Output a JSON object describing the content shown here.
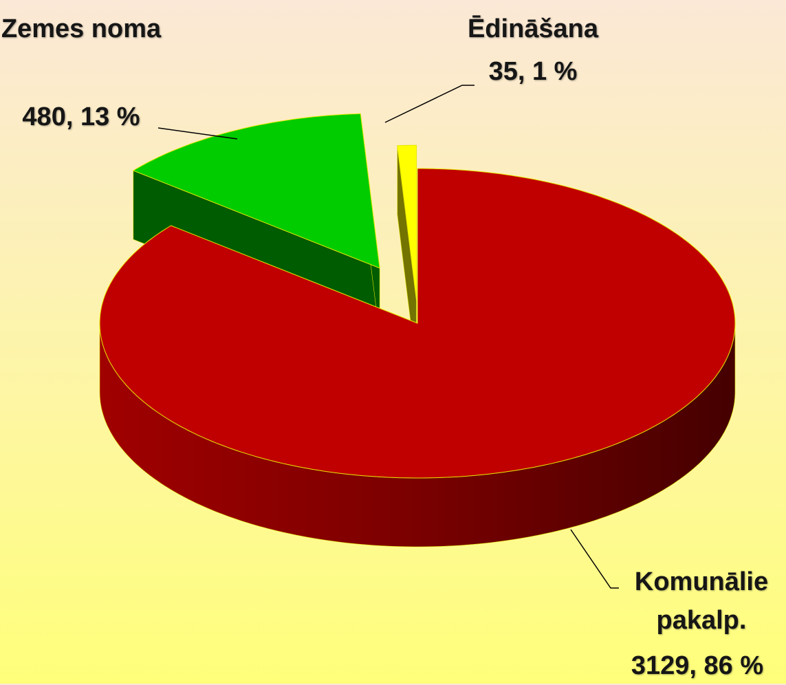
{
  "chart_data": {
    "type": "pie",
    "categories": [
      "Komunālie pakalp.",
      "Zemes noma",
      "Ēdināšana"
    ],
    "values": [
      3129,
      480,
      35
    ],
    "value_labels": [
      "3129, 86 %",
      "480, 13 %",
      "35, 1 %"
    ],
    "colors": [
      "#c00000",
      "#00cc00",
      "#ffff00"
    ]
  }
}
